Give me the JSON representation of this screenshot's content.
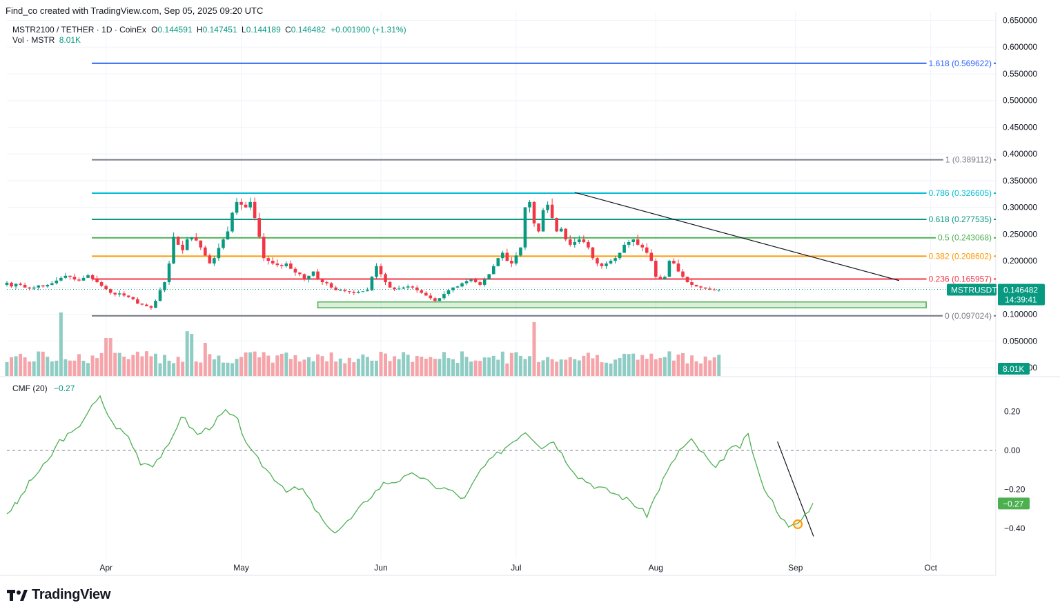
{
  "header": {
    "credit": "Find_co created with TradingView.com, Sep 05, 2025 09:20 UTC"
  },
  "legend": {
    "symbol": "MSTR2100 / TETHER · 1D · CoinEx",
    "o_label": "O",
    "o_value": "0.144591",
    "h_label": "H",
    "h_value": "0.147451",
    "l_label": "L",
    "l_value": "0.144189",
    "c_label": "C",
    "c_value": "0.146482",
    "change": "+0.001900 (+1.31%)",
    "vol_label": "Vol · MSTR",
    "vol_value": "8.01K"
  },
  "cmf_legend": {
    "label": "CMF (20)",
    "value": "−0.27"
  },
  "price_axis": {
    "ticks": [
      "0.650000",
      "0.600000",
      "0.550000",
      "0.500000",
      "0.450000",
      "0.400000",
      "0.350000",
      "0.300000",
      "0.250000",
      "0.200000",
      "0.150000",
      "0.100000",
      "0.050000",
      "0.000000"
    ],
    "tick_values": [
      0.65,
      0.6,
      0.55,
      0.5,
      0.45,
      0.4,
      0.35,
      0.3,
      0.25,
      0.2,
      0.15,
      0.1,
      0.05,
      0.0
    ],
    "current_label": "MSTRUSDT",
    "current_price": "0.146482",
    "countdown": "14:39:41",
    "volume_badge": "8.01K"
  },
  "cmf_axis": {
    "ticks": [
      "0.20",
      "0.00",
      "−0.20",
      "−0.40"
    ],
    "tick_values": [
      0.2,
      0.0,
      -0.2,
      -0.4
    ],
    "current": "−0.27"
  },
  "time_axis": {
    "labels": [
      "Apr",
      "May",
      "Jun",
      "Jul",
      "Aug",
      "Sep",
      "Oct"
    ]
  },
  "fib_levels": [
    {
      "label": "1.618 (0.569622)",
      "price": 0.569622,
      "color": "#2962ff"
    },
    {
      "label": "1 (0.389112)",
      "price": 0.389112,
      "color": "#787b86"
    },
    {
      "label": "0.786 (0.326605)",
      "price": 0.326605,
      "color": "#00bcd4"
    },
    {
      "label": "0.618 (0.277535)",
      "price": 0.277535,
      "color": "#089981"
    },
    {
      "label": "0.5 (0.243068)",
      "price": 0.243068,
      "color": "#4caf50"
    },
    {
      "label": "0.382 (0.208602)",
      "price": 0.208602,
      "color": "#ff9800"
    },
    {
      "label": "0.236 (0.165957)",
      "price": 0.165957,
      "color": "#f23645"
    },
    {
      "label": "0 (0.097024)",
      "price": 0.097024,
      "color": "#787b86"
    }
  ],
  "colors": {
    "up": "#089981",
    "down": "#f23645",
    "up_vol": "#8fcdc4",
    "down_vol": "#f5a5a9",
    "cmf": "#4caf50",
    "trend": "#131722",
    "zone": "#4caf50"
  },
  "brand": {
    "name": "TradingView"
  },
  "chart_data": {
    "type": "candlestick",
    "price_range": [
      0.0,
      0.65
    ],
    "cmf_range": [
      -0.45,
      0.25
    ],
    "date_range": [
      "2025-03-10",
      "2025-10-08"
    ],
    "month_ticks": [
      "2025-04-01",
      "2025-05-01",
      "2025-06-01",
      "2025-07-01",
      "2025-08-01",
      "2025-09-01",
      "2025-10-01"
    ],
    "candles_daily_close_approx": [
      0.159,
      0.152,
      0.157,
      0.155,
      0.15,
      0.148,
      0.15,
      0.154,
      0.152,
      0.155,
      0.158,
      0.163,
      0.168,
      0.172,
      0.17,
      0.165,
      0.163,
      0.168,
      0.173,
      0.166,
      0.16,
      0.153,
      0.147,
      0.14,
      0.137,
      0.139,
      0.135,
      0.132,
      0.128,
      0.12,
      0.118,
      0.115,
      0.112,
      0.125,
      0.145,
      0.16,
      0.195,
      0.245,
      0.23,
      0.22,
      0.24,
      0.244,
      0.238,
      0.225,
      0.21,
      0.195,
      0.205,
      0.224,
      0.24,
      0.255,
      0.29,
      0.31,
      0.305,
      0.3,
      0.31,
      0.28,
      0.245,
      0.205,
      0.2,
      0.195,
      0.192,
      0.19,
      0.195,
      0.185,
      0.178,
      0.175,
      0.165,
      0.172,
      0.18,
      0.165,
      0.16,
      0.158,
      0.15,
      0.145,
      0.145,
      0.143,
      0.142,
      0.14,
      0.142,
      0.143,
      0.145,
      0.17,
      0.19,
      0.175,
      0.16,
      0.15,
      0.147,
      0.148,
      0.15,
      0.152,
      0.15,
      0.145,
      0.14,
      0.135,
      0.13,
      0.125,
      0.13,
      0.138,
      0.145,
      0.15,
      0.152,
      0.158,
      0.162,
      0.165,
      0.16,
      0.155,
      0.165,
      0.175,
      0.19,
      0.205,
      0.215,
      0.2,
      0.195,
      0.21,
      0.225,
      0.3,
      0.31,
      0.27,
      0.255,
      0.295,
      0.305,
      0.28,
      0.255,
      0.26,
      0.24,
      0.23,
      0.235,
      0.24,
      0.235,
      0.225,
      0.205,
      0.195,
      0.19,
      0.195,
      0.2,
      0.205,
      0.215,
      0.23,
      0.235,
      0.24,
      0.23,
      0.225,
      0.215,
      0.2,
      0.17,
      0.165,
      0.17,
      0.2,
      0.195,
      0.18,
      0.17,
      0.16,
      0.155,
      0.152,
      0.15,
      0.148,
      0.146,
      0.145,
      0.146
    ],
    "volume_approx": [
      "varies ~10K–40K, peak ~110K (late March)"
    ],
    "cmf_last": -0.27,
    "current_price": 0.146482,
    "trend_lines": [
      {
        "pane": "price",
        "from": [
          "2025-07-14",
          0.328
        ],
        "to": [
          "2025-09-24",
          0.163
        ]
      },
      {
        "pane": "cmf",
        "from": [
          "2025-08-28",
          0.045
        ],
        "to": [
          "2025-09-05",
          -0.44
        ]
      }
    ],
    "support_zone": {
      "from": "2025-05-18",
      "to": "2025-09-30",
      "low": 0.112,
      "high": 0.123
    },
    "grid": true
  }
}
